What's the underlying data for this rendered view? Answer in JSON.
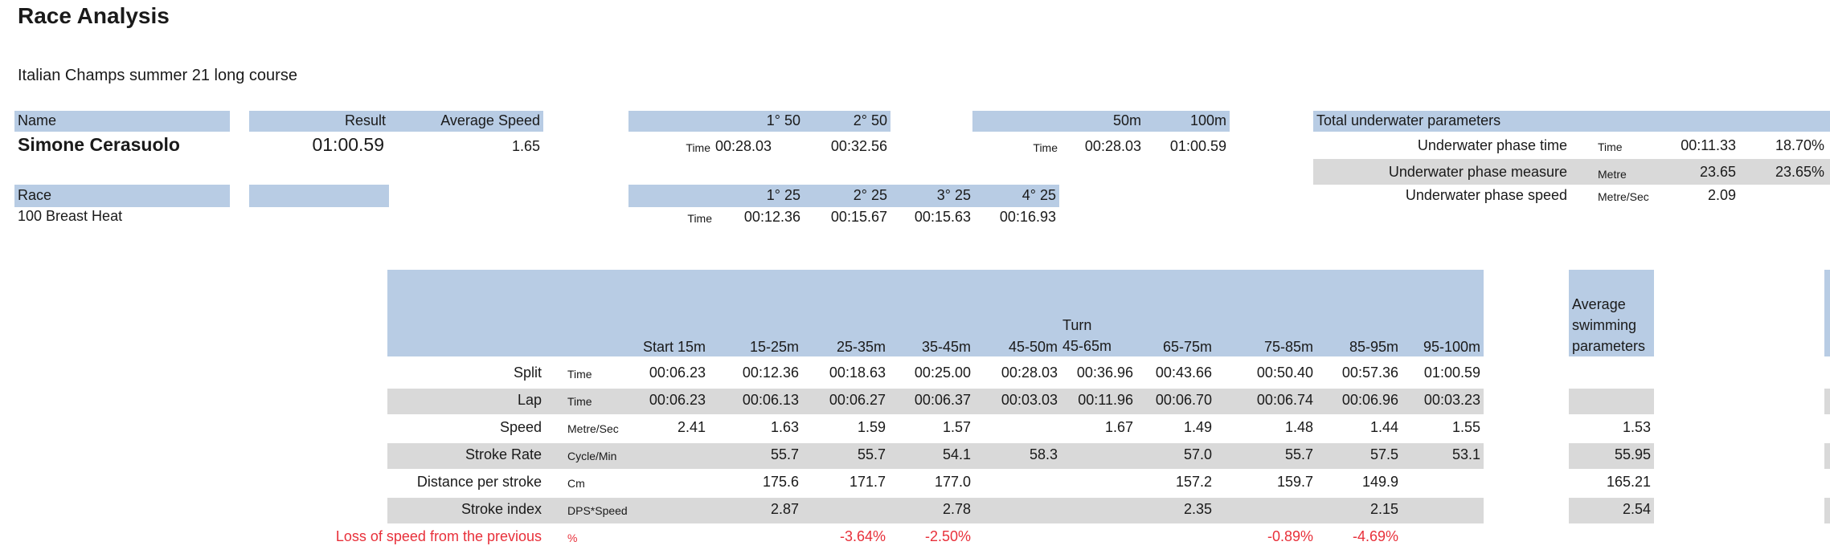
{
  "title": "Race Analysis",
  "subtitle": "Italian Champs summer 21 long course",
  "name_header": "Name",
  "swimmer_name": "Simone Cerasuolo",
  "result_header": "Result",
  "avg_speed_header": "Average Speed",
  "result": "01:00.59",
  "avg_speed": "1.65",
  "race_header": "Race",
  "race": "100 Breast Heat",
  "split50": {
    "headers": [
      "1° 50",
      "2° 50"
    ],
    "unit": "Time",
    "values": [
      "00:28.03",
      "00:32.56"
    ]
  },
  "cum50": {
    "headers": [
      "50m",
      "100m"
    ],
    "unit": "Time",
    "values": [
      "00:28.03",
      "01:00.59"
    ]
  },
  "split25": {
    "headers": [
      "1° 25",
      "2° 25",
      "3° 25",
      "4° 25"
    ],
    "unit": "Time",
    "values": [
      "00:12.36",
      "00:15.67",
      "00:15.63",
      "00:16.93"
    ]
  },
  "underwater": {
    "header": "Total underwater parameters",
    "rows": [
      {
        "label": "Underwater phase time",
        "unit": "Time",
        "value": "00:11.33",
        "pct": "18.70%"
      },
      {
        "label": "Underwater phase measure",
        "unit": "Metre",
        "value": "23.65",
        "pct": "23.65%"
      },
      {
        "label": "Underwater phase speed",
        "unit": "Metre/Sec",
        "value": "2.09",
        "pct": ""
      }
    ]
  },
  "main_table": {
    "columns": [
      "Start 15m",
      "15-25m",
      "25-35m",
      "35-45m",
      "45-50m",
      "Turn\n45-65m",
      "65-75m",
      "75-85m",
      "85-95m",
      "95-100m"
    ],
    "avg_header": "Average\nswimming\nparameters",
    "rows": [
      {
        "label": "Split",
        "unit": "Time",
        "values": [
          "00:06.23",
          "00:12.36",
          "00:18.63",
          "00:25.00",
          "00:28.03",
          "00:36.96",
          "00:43.66",
          "00:50.40",
          "00:57.36",
          "01:00.59"
        ],
        "avg": ""
      },
      {
        "label": "Lap",
        "unit": "Time",
        "values": [
          "00:06.23",
          "00:06.13",
          "00:06.27",
          "00:06.37",
          "00:03.03",
          "00:11.96",
          "00:06.70",
          "00:06.74",
          "00:06.96",
          "00:03.23"
        ],
        "avg": ""
      },
      {
        "label": "Speed",
        "unit": "Metre/Sec",
        "values": [
          "2.41",
          "1.63",
          "1.59",
          "1.57",
          "",
          "1.67",
          "1.49",
          "1.48",
          "1.44",
          "1.55"
        ],
        "avg": "1.53"
      },
      {
        "label": "Stroke Rate",
        "unit": "Cycle/Min",
        "values": [
          "",
          "55.7",
          "55.7",
          "54.1",
          "58.3",
          "",
          "57.0",
          "55.7",
          "57.5",
          "53.1"
        ],
        "avg": "55.95"
      },
      {
        "label": "Distance per stroke",
        "unit": "Cm",
        "values": [
          "",
          "175.6",
          "171.7",
          "177.0",
          "",
          "",
          "157.2",
          "159.7",
          "149.9",
          ""
        ],
        "avg": "165.21"
      },
      {
        "label": "Stroke index",
        "unit": "DPS*Speed",
        "values": [
          "",
          "2.87",
          "",
          "2.78",
          "",
          "",
          "2.35",
          "",
          "2.15",
          ""
        ],
        "avg": "2.54"
      },
      {
        "label": "Loss of speed from the previous",
        "unit": "%",
        "values": [
          "",
          "",
          "-3.64%",
          "-2.50%",
          "",
          "",
          "",
          "-0.89%",
          "-4.69%",
          ""
        ],
        "avg": ""
      }
    ]
  }
}
